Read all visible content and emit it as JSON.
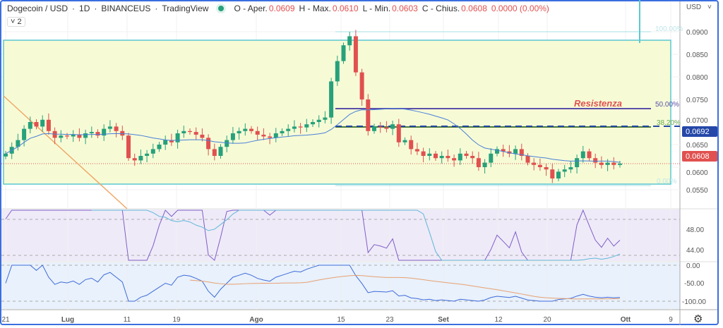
{
  "header": {
    "symbol": "Dogecoin / USD",
    "interval": "1D",
    "exchange": "BINANCEUS",
    "source": "TradingView",
    "sep": "·",
    "open_label": "O - Aper.",
    "open": "0.0609",
    "high_label": "H - Max.",
    "high": "0.0610",
    "low_label": "L - Min.",
    "low": "0.0603",
    "close_label": "C - Chius.",
    "close": "0.0608",
    "change": "0.0000 (0.00%)",
    "collapse_count": "2"
  },
  "price_axis": {
    "currency": "USD",
    "ticks": [
      "0.0900",
      "0.0850",
      "0.0800",
      "0.0750",
      "0.0700",
      "0.0650",
      "0.0600",
      "0.0550"
    ],
    "badge_blue": "0.0692",
    "badge_red": "0.0608"
  },
  "rsi_axis": {
    "ticks": [
      "48.00",
      "44.00"
    ]
  },
  "osc_axis": {
    "ticks": [
      "0.00",
      "-50.00",
      "-100.00"
    ]
  },
  "time_axis": [
    "21",
    "Lug",
    "11",
    "19",
    "Ago",
    "15",
    "23",
    "Set",
    "12",
    "20",
    "Ott",
    "9"
  ],
  "annotations": {
    "resistance": "Resistenza",
    "fib_100": "100.00%",
    "fib_50": "50.00%",
    "fib_382": "38.20%",
    "fib_0": "0.00%"
  },
  "colors": {
    "up": "#26a17b",
    "down": "#e0514f",
    "rect_fill": "#f6fbd6",
    "rect_border": "#5cc8d0",
    "resistance": "#5a4fa8",
    "accent": "#2962ff"
  },
  "chart_data": {
    "type": "candlestick",
    "start": "2022-06-21",
    "close": [
      0.063,
      0.0645,
      0.066,
      0.0685,
      0.07,
      0.069,
      0.0705,
      0.068,
      0.0665,
      0.067,
      0.0668,
      0.0672,
      0.0665,
      0.0675,
      0.0678,
      0.067,
      0.0685,
      0.069,
      0.068,
      0.067,
      0.062,
      0.0615,
      0.0625,
      0.063,
      0.064,
      0.065,
      0.066,
      0.0655,
      0.0675,
      0.068,
      0.0678,
      0.0672,
      0.0665,
      0.064,
      0.0625,
      0.0645,
      0.066,
      0.0675,
      0.068,
      0.0685,
      0.068,
      0.0672,
      0.0668,
      0.0665,
      0.0675,
      0.068,
      0.0685,
      0.069,
      0.0688,
      0.0695,
      0.07,
      0.0705,
      0.071,
      0.079,
      0.0835,
      0.087,
      0.089,
      0.081,
      0.075,
      0.068,
      0.069,
      0.0688,
      0.0685,
      0.0695,
      0.0655,
      0.066,
      0.064,
      0.0635,
      0.0625,
      0.063,
      0.062,
      0.0625,
      0.062,
      0.0615,
      0.063,
      0.0625,
      0.062,
      0.06,
      0.061,
      0.063,
      0.064,
      0.0635,
      0.063,
      0.064,
      0.0625,
      0.061,
      0.0605,
      0.06,
      0.0595,
      0.0575,
      0.059,
      0.0595,
      0.06,
      0.062,
      0.0635,
      0.062,
      0.061,
      0.0605,
      0.061,
      0.0605,
      0.0608
    ]
  }
}
